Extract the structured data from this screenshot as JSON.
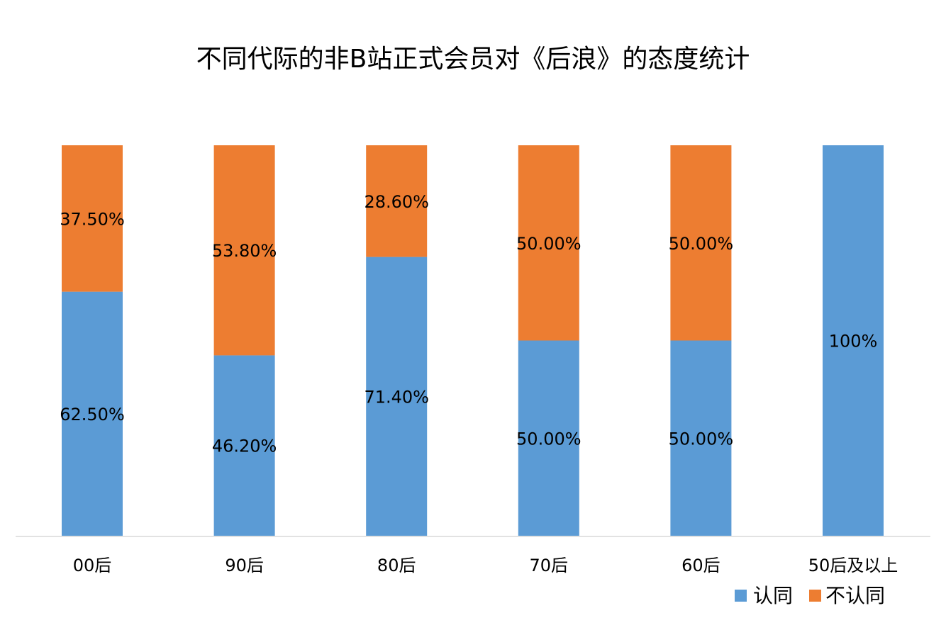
{
  "chart_data": {
    "type": "bar",
    "stacked": true,
    "title": "不同代际的非B站正式会员对《后浪》的态度统计",
    "categories": [
      "00后",
      "90后",
      "80后",
      "70后",
      "60后",
      "50后及以上"
    ],
    "series": [
      {
        "name": "认同",
        "color": "#5B9BD5",
        "values": [
          62.5,
          46.2,
          71.4,
          50.0,
          50.0,
          100
        ],
        "labels": [
          "62.50%",
          "46.20%",
          "71.40%",
          "50.00%",
          "50.00%",
          "100%"
        ]
      },
      {
        "name": "不认同",
        "color": "#ED7D31",
        "values": [
          37.5,
          53.8,
          28.6,
          50.0,
          50.0,
          0
        ],
        "labels": [
          "37.50%",
          "53.80%",
          "28.60%",
          "50.00%",
          "50.00%",
          ""
        ]
      }
    ],
    "ylim": [
      0,
      100
    ],
    "grid": false,
    "legend": "bottom-right"
  }
}
